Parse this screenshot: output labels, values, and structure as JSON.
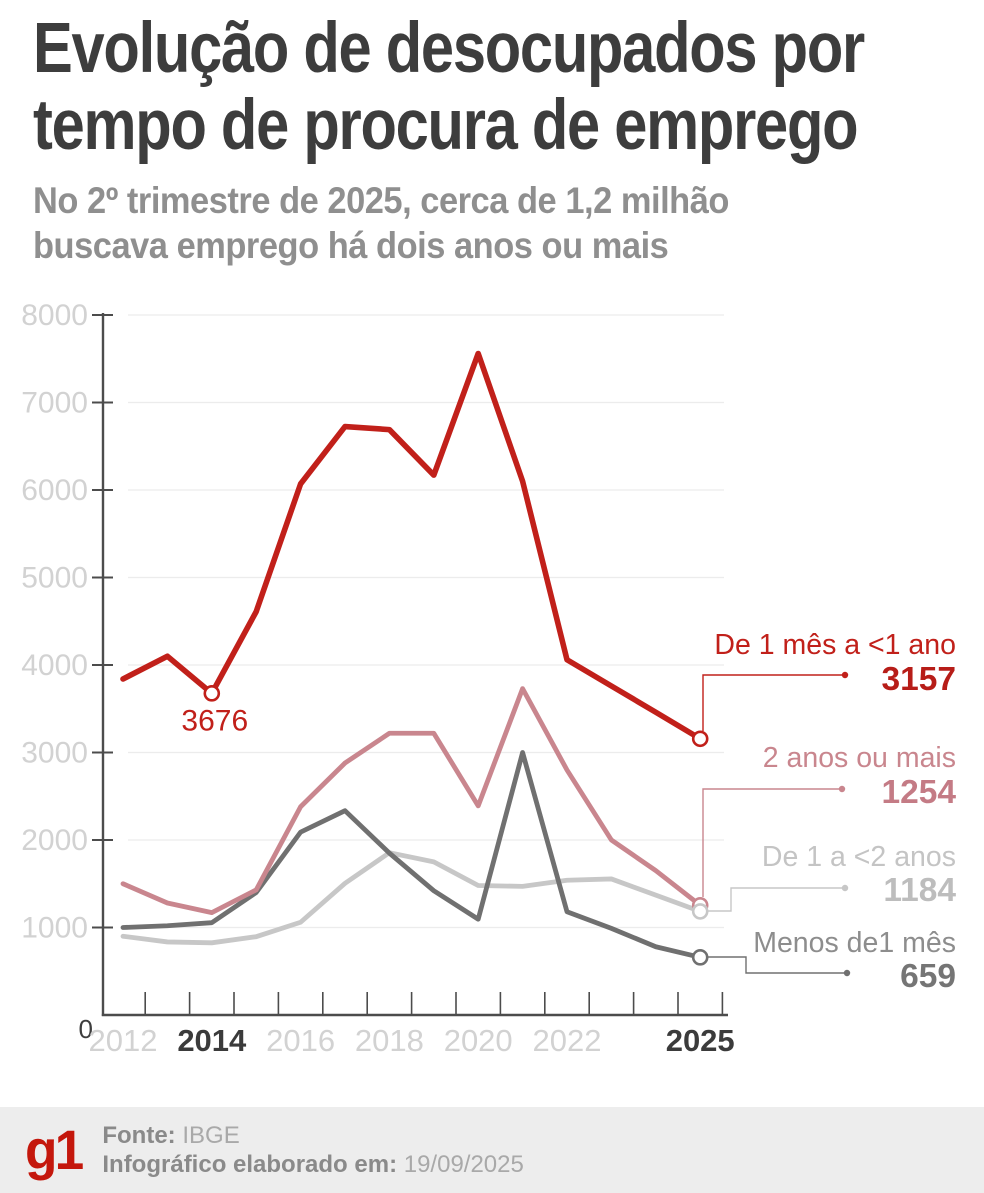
{
  "header": {
    "title_lines": [
      "Evolução de desocupados por",
      "tempo de procura de emprego"
    ],
    "subtitle_lines": [
      "No 2º trimestre de 2025, cerca de 1,2 milhão",
      "buscava emprego há dois anos ou mais"
    ]
  },
  "chart_data": {
    "type": "line",
    "x": [
      2012,
      2013,
      2014,
      2015,
      2016,
      2017,
      2018,
      2019,
      2020,
      2021,
      2022,
      2023,
      2024,
      2025
    ],
    "ylim": [
      0,
      8000
    ],
    "ytick_values": [
      1000,
      2000,
      3000,
      4000,
      5000,
      6000,
      7000,
      8000
    ],
    "origin_label": "0",
    "grid": true,
    "legend_position": "right-edge-annotations",
    "xticks": [
      {
        "label": "2012",
        "year": 2012,
        "strong": false
      },
      {
        "label": "2014",
        "year": 2014,
        "strong": true
      },
      {
        "label": "2016",
        "year": 2016,
        "strong": false
      },
      {
        "label": "2018",
        "year": 2018,
        "strong": false
      },
      {
        "label": "2020",
        "year": 2020,
        "strong": false
      },
      {
        "label": "2022",
        "year": 2022,
        "strong": false
      },
      {
        "label": "2025",
        "year": 2025,
        "strong": true
      }
    ],
    "series": [
      {
        "name": "De 1 mês a <1 ano",
        "color": "#c1201a",
        "label_color": "#c1201a",
        "value_color": "#b71d18",
        "end_label": "3157",
        "values": [
          3840,
          4100,
          3676,
          4610,
          6070,
          6725,
          6690,
          6170,
          7560,
          6100,
          4060,
          3760,
          3460,
          3157
        ],
        "point_annotation": {
          "year": 2014,
          "label": "3676"
        }
      },
      {
        "name": "2 anos ou mais",
        "color": "#c9868e",
        "label_color": "#c9868e",
        "value_color": "#c47b85",
        "end_label": "1254",
        "values": [
          1500,
          1280,
          1170,
          1430,
          2380,
          2880,
          3220,
          3220,
          2390,
          3730,
          2800,
          2000,
          1650,
          1254
        ]
      },
      {
        "name": "De 1 a <2 anos",
        "color": "#c7c7c7",
        "label_color": "#c4c4c4",
        "value_color": "#bdbdbd",
        "end_label": "1184",
        "values": [
          900,
          835,
          825,
          895,
          1060,
          1505,
          1855,
          1750,
          1480,
          1470,
          1540,
          1555,
          1370,
          1184
        ]
      },
      {
        "name": "Menos de1 mês",
        "color": "#707070",
        "label_color": "#8d8d8d",
        "value_color": "#757575",
        "end_label": "659",
        "values": [
          1000,
          1020,
          1055,
          1400,
          2090,
          2335,
          1850,
          1420,
          1095,
          3000,
          1180,
          990,
          780,
          659
        ]
      }
    ],
    "axis_colors": {
      "axis": "#4c4c4c",
      "grid": "#ececec",
      "tick_label_light": "#d2d2d2",
      "tick_label_dark": "#3b3b3b"
    }
  },
  "footer": {
    "logo": "g1",
    "source_label": "Fonte:",
    "source_value": "IBGE",
    "elaborated_label": "Infográfico elaborado em:",
    "elaborated_value": "19/09/2025"
  }
}
